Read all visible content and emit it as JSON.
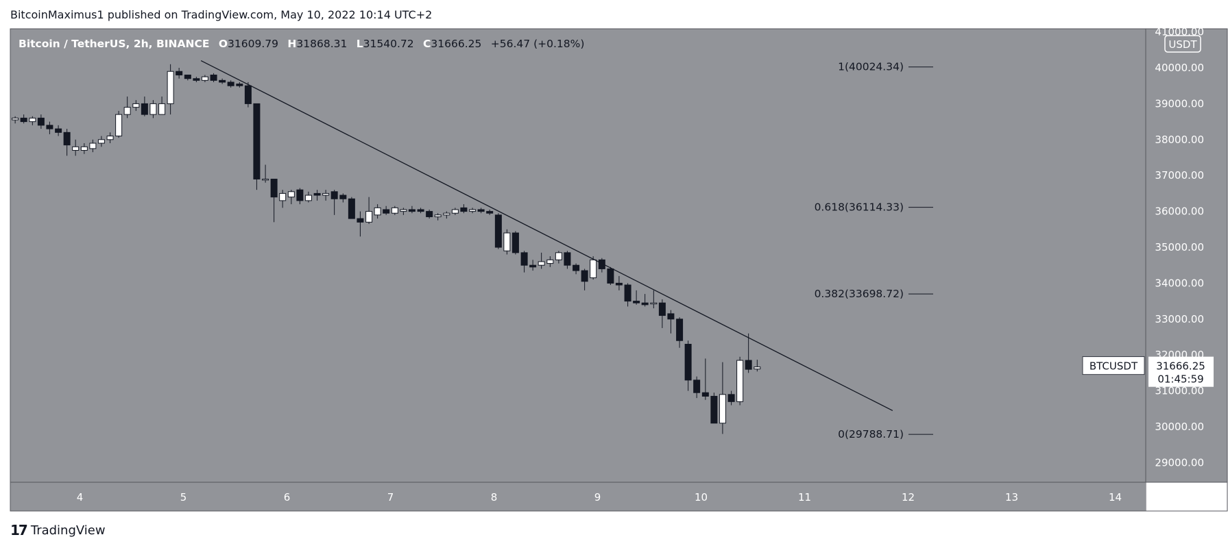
{
  "header": {
    "publisher": "BitcoinMaximus1 published on TradingView.com, May 10, 2022 10:14 UTC+2"
  },
  "legend": {
    "symbol": "Bitcoin / TetherUS, 2h, BINANCE",
    "o_label": "O",
    "o_value": "31609.79",
    "h_label": "H",
    "h_value": "31868.31",
    "l_label": "L",
    "l_value": "31540.72",
    "c_label": "C",
    "c_value": "31666.25",
    "change": "+56.47 (+0.18%)"
  },
  "price_scale": {
    "currency": "USDT",
    "ticks": [
      "41000.00",
      "40000.00",
      "39000.00",
      "38000.00",
      "37000.00",
      "36000.00",
      "35000.00",
      "34000.00",
      "33000.00",
      "32000.00",
      "31000.00",
      "30000.00",
      "29000.00"
    ]
  },
  "last_price": {
    "symbol": "BTCUSDT",
    "price": "31666.25",
    "countdown": "01:45:59"
  },
  "time_scale": {
    "ticks": [
      "4",
      "5",
      "6",
      "7",
      "8",
      "9",
      "10",
      "11",
      "12",
      "13",
      "14"
    ]
  },
  "logo": {
    "mark": "17",
    "text": "TradingView"
  },
  "colors": {
    "pane": "#929499",
    "up": "#ffffff",
    "down": "#131722",
    "line": "#131722",
    "label_bg": "#ffffff"
  },
  "chart_data": {
    "type": "candlestick",
    "symbol": "BTCUSDT",
    "interval": "2h",
    "exchange": "BINANCE",
    "x_axis": {
      "type": "date-day",
      "ticks": [
        4,
        5,
        6,
        7,
        8,
        9,
        10,
        11,
        12,
        13,
        14
      ],
      "range": [
        3.35,
        14.35
      ]
    },
    "ylim": [
      28500,
      41200
    ],
    "candles": [
      {
        "t": 3.375,
        "o": 38550,
        "h": 38650,
        "l": 38450,
        "c": 38600
      },
      {
        "t": 3.458,
        "o": 38600,
        "h": 38700,
        "l": 38450,
        "c": 38500
      },
      {
        "t": 3.542,
        "o": 38500,
        "h": 38650,
        "l": 38400,
        "c": 38600
      },
      {
        "t": 3.625,
        "o": 38600,
        "h": 38700,
        "l": 38300,
        "c": 38400
      },
      {
        "t": 3.708,
        "o": 38400,
        "h": 38500,
        "l": 38150,
        "c": 38300
      },
      {
        "t": 3.792,
        "o": 38300,
        "h": 38400,
        "l": 38100,
        "c": 38200
      },
      {
        "t": 3.875,
        "o": 38200,
        "h": 38300,
        "l": 37550,
        "c": 37850
      },
      {
        "t": 3.958,
        "o": 37700,
        "h": 38000,
        "l": 37550,
        "c": 37800
      },
      {
        "t": 4.042,
        "o": 37700,
        "h": 37900,
        "l": 37600,
        "c": 37800
      },
      {
        "t": 4.125,
        "o": 37750,
        "h": 38000,
        "l": 37650,
        "c": 37900
      },
      {
        "t": 4.208,
        "o": 37900,
        "h": 38100,
        "l": 37800,
        "c": 38000
      },
      {
        "t": 4.292,
        "o": 38000,
        "h": 38200,
        "l": 37900,
        "c": 38100
      },
      {
        "t": 4.375,
        "o": 38100,
        "h": 38800,
        "l": 38050,
        "c": 38700
      },
      {
        "t": 4.458,
        "o": 38700,
        "h": 39200,
        "l": 38600,
        "c": 38900
      },
      {
        "t": 4.542,
        "o": 38900,
        "h": 39100,
        "l": 38800,
        "c": 39000
      },
      {
        "t": 4.625,
        "o": 39000,
        "h": 39200,
        "l": 38650,
        "c": 38700
      },
      {
        "t": 4.708,
        "o": 38700,
        "h": 39100,
        "l": 38600,
        "c": 39000
      },
      {
        "t": 4.792,
        "o": 38700,
        "h": 39200,
        "l": 38700,
        "c": 39000
      },
      {
        "t": 4.875,
        "o": 39000,
        "h": 40100,
        "l": 38700,
        "c": 39900
      },
      {
        "t": 4.958,
        "o": 39900,
        "h": 40000,
        "l": 39700,
        "c": 39800
      },
      {
        "t": 5.042,
        "o": 39800,
        "h": 39800,
        "l": 39650,
        "c": 39700
      },
      {
        "t": 5.125,
        "o": 39700,
        "h": 39750,
        "l": 39600,
        "c": 39650
      },
      {
        "t": 5.208,
        "o": 39650,
        "h": 39800,
        "l": 39600,
        "c": 39750
      },
      {
        "t": 5.292,
        "o": 39800,
        "h": 39850,
        "l": 39600,
        "c": 39650
      },
      {
        "t": 5.375,
        "o": 39650,
        "h": 39700,
        "l": 39550,
        "c": 39600
      },
      {
        "t": 5.458,
        "o": 39600,
        "h": 39650,
        "l": 39450,
        "c": 39500
      },
      {
        "t": 5.542,
        "o": 39550,
        "h": 39600,
        "l": 39450,
        "c": 39500
      },
      {
        "t": 5.625,
        "o": 39500,
        "h": 39600,
        "l": 38900,
        "c": 39000
      },
      {
        "t": 5.708,
        "o": 39000,
        "h": 39000,
        "l": 36600,
        "c": 36900
      },
      {
        "t": 5.792,
        "o": 36900,
        "h": 37300,
        "l": 36800,
        "c": 36900
      },
      {
        "t": 5.875,
        "o": 36900,
        "h": 36900,
        "l": 35700,
        "c": 36400
      },
      {
        "t": 5.958,
        "o": 36300,
        "h": 36600,
        "l": 36100,
        "c": 36500
      },
      {
        "t": 6.042,
        "o": 36400,
        "h": 36600,
        "l": 36200,
        "c": 36550
      },
      {
        "t": 6.125,
        "o": 36600,
        "h": 36650,
        "l": 36200,
        "c": 36300
      },
      {
        "t": 6.208,
        "o": 36300,
        "h": 36550,
        "l": 36250,
        "c": 36450
      },
      {
        "t": 6.292,
        "o": 36500,
        "h": 36600,
        "l": 36300,
        "c": 36450
      },
      {
        "t": 6.375,
        "o": 36450,
        "h": 36600,
        "l": 36300,
        "c": 36500
      },
      {
        "t": 6.458,
        "o": 36550,
        "h": 36600,
        "l": 35900,
        "c": 36350
      },
      {
        "t": 6.542,
        "o": 36450,
        "h": 36500,
        "l": 36250,
        "c": 36350
      },
      {
        "t": 6.625,
        "o": 36350,
        "h": 36400,
        "l": 35800,
        "c": 35800
      },
      {
        "t": 6.708,
        "o": 35800,
        "h": 36000,
        "l": 35300,
        "c": 35700
      },
      {
        "t": 6.792,
        "o": 35700,
        "h": 36400,
        "l": 35650,
        "c": 36000
      },
      {
        "t": 6.875,
        "o": 35900,
        "h": 36200,
        "l": 35800,
        "c": 36100
      },
      {
        "t": 6.958,
        "o": 36050,
        "h": 36150,
        "l": 35900,
        "c": 35950
      },
      {
        "t": 7.042,
        "o": 35950,
        "h": 36150,
        "l": 35900,
        "c": 36100
      },
      {
        "t": 7.125,
        "o": 36000,
        "h": 36100,
        "l": 35900,
        "c": 36050
      },
      {
        "t": 7.208,
        "o": 36050,
        "h": 36150,
        "l": 35950,
        "c": 36000
      },
      {
        "t": 7.292,
        "o": 36050,
        "h": 36100,
        "l": 35950,
        "c": 36000
      },
      {
        "t": 7.375,
        "o": 36000,
        "h": 36050,
        "l": 35800,
        "c": 35850
      },
      {
        "t": 7.458,
        "o": 35850,
        "h": 35950,
        "l": 35750,
        "c": 35900
      },
      {
        "t": 7.542,
        "o": 35900,
        "h": 36000,
        "l": 35800,
        "c": 35950
      },
      {
        "t": 7.625,
        "o": 35950,
        "h": 36100,
        "l": 35900,
        "c": 36050
      },
      {
        "t": 7.708,
        "o": 36100,
        "h": 36200,
        "l": 35950,
        "c": 36000
      },
      {
        "t": 7.792,
        "o": 36000,
        "h": 36100,
        "l": 35950,
        "c": 36050
      },
      {
        "t": 7.875,
        "o": 36050,
        "h": 36100,
        "l": 35950,
        "c": 36000
      },
      {
        "t": 7.958,
        "o": 36000,
        "h": 36050,
        "l": 35900,
        "c": 35950
      },
      {
        "t": 8.042,
        "o": 35900,
        "h": 35950,
        "l": 34950,
        "c": 35000
      },
      {
        "t": 8.125,
        "o": 34900,
        "h": 35500,
        "l": 34800,
        "c": 35400
      },
      {
        "t": 8.208,
        "o": 35400,
        "h": 35450,
        "l": 34800,
        "c": 34850
      },
      {
        "t": 8.292,
        "o": 34850,
        "h": 34900,
        "l": 34300,
        "c": 34500
      },
      {
        "t": 8.375,
        "o": 34500,
        "h": 34650,
        "l": 34350,
        "c": 34450
      },
      {
        "t": 8.458,
        "o": 34500,
        "h": 34850,
        "l": 34400,
        "c": 34600
      },
      {
        "t": 8.542,
        "o": 34550,
        "h": 34750,
        "l": 34450,
        "c": 34650
      },
      {
        "t": 8.625,
        "o": 34650,
        "h": 34900,
        "l": 34550,
        "c": 34850
      },
      {
        "t": 8.708,
        "o": 34850,
        "h": 34900,
        "l": 34400,
        "c": 34500
      },
      {
        "t": 8.792,
        "o": 34500,
        "h": 34550,
        "l": 34250,
        "c": 34350
      },
      {
        "t": 8.875,
        "o": 34350,
        "h": 34400,
        "l": 33800,
        "c": 34050
      },
      {
        "t": 8.958,
        "o": 34150,
        "h": 34750,
        "l": 34100,
        "c": 34650
      },
      {
        "t": 9.042,
        "o": 34650,
        "h": 34700,
        "l": 34300,
        "c": 34400
      },
      {
        "t": 9.125,
        "o": 34400,
        "h": 34450,
        "l": 33950,
        "c": 34000
      },
      {
        "t": 9.208,
        "o": 34000,
        "h": 34200,
        "l": 33800,
        "c": 33950
      },
      {
        "t": 9.292,
        "o": 33950,
        "h": 34000,
        "l": 33350,
        "c": 33500
      },
      {
        "t": 9.375,
        "o": 33500,
        "h": 33800,
        "l": 33400,
        "c": 33450
      },
      {
        "t": 9.458,
        "o": 33450,
        "h": 33700,
        "l": 33350,
        "c": 33400
      },
      {
        "t": 9.542,
        "o": 33450,
        "h": 33800,
        "l": 33300,
        "c": 33450
      },
      {
        "t": 9.625,
        "o": 33450,
        "h": 33550,
        "l": 32750,
        "c": 33100
      },
      {
        "t": 9.708,
        "o": 33150,
        "h": 33250,
        "l": 32600,
        "c": 33000
      },
      {
        "t": 9.792,
        "o": 33000,
        "h": 33050,
        "l": 32200,
        "c": 32400
      },
      {
        "t": 9.875,
        "o": 32300,
        "h": 32400,
        "l": 31000,
        "c": 31300
      },
      {
        "t": 9.958,
        "o": 31300,
        "h": 31400,
        "l": 30800,
        "c": 30950
      },
      {
        "t": 10.042,
        "o": 30950,
        "h": 31900,
        "l": 30750,
        "c": 30850
      },
      {
        "t": 10.125,
        "o": 30850,
        "h": 30950,
        "l": 30100,
        "c": 30100
      },
      {
        "t": 10.208,
        "o": 30100,
        "h": 31800,
        "l": 29800,
        "c": 30900
      },
      {
        "t": 10.292,
        "o": 30900,
        "h": 31000,
        "l": 30600,
        "c": 30700
      },
      {
        "t": 10.375,
        "o": 30700,
        "h": 31950,
        "l": 30600,
        "c": 31850
      },
      {
        "t": 10.458,
        "o": 31850,
        "h": 32600,
        "l": 31500,
        "c": 31600
      },
      {
        "t": 10.542,
        "o": 31609.79,
        "h": 31868.31,
        "l": 31540.72,
        "c": 31666.25
      }
    ],
    "trendline": {
      "t1": 5.17,
      "p1": 40200,
      "t2": 11.85,
      "p2": 30450
    },
    "fibonacci": [
      {
        "level": 1,
        "price": 40024.34,
        "label": "1(40024.34)"
      },
      {
        "level": 0.618,
        "price": 36114.33,
        "label": "0.618(36114.33)"
      },
      {
        "level": 0.382,
        "price": 33698.72,
        "label": "0.382(33698.72)"
      },
      {
        "level": 0,
        "price": 29788.71,
        "label": "0(29788.71)"
      }
    ]
  }
}
